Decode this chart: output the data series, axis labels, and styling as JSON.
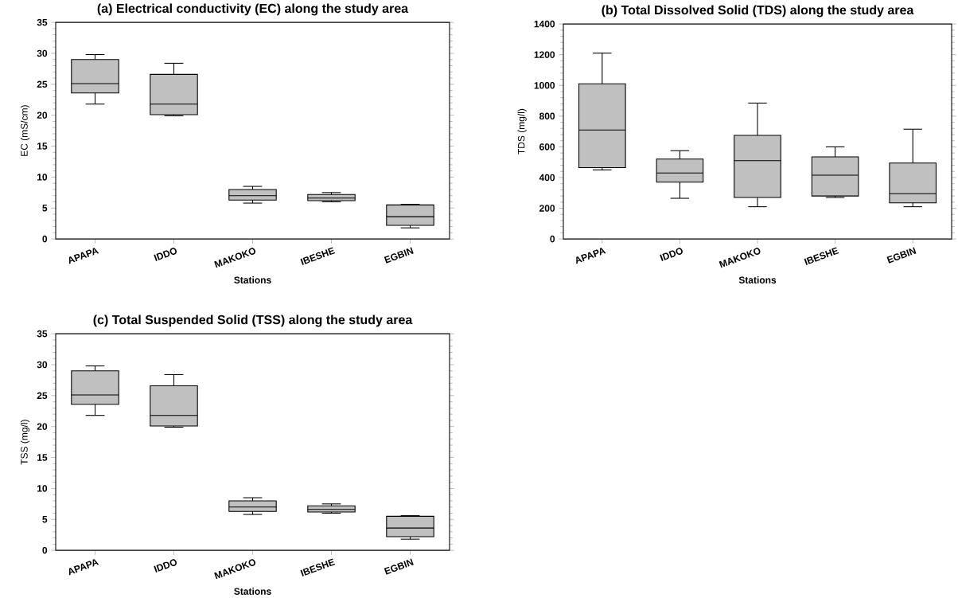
{
  "chart_data": [
    {
      "type": "box",
      "title": "(a) Electrical conductivity (EC) along the study area",
      "xlabel": "Stations",
      "ylabel": "EC (mS/cm)",
      "categories": [
        "APAPA",
        "IDDO",
        "MAKOKO",
        "IBESHE",
        "EGBIN"
      ],
      "ylim": [
        0,
        35
      ],
      "yticks": [
        0,
        5,
        10,
        15,
        20,
        25,
        30,
        35
      ],
      "series": [
        {
          "color": "#c0c0c0",
          "boxes": [
            {
              "low": 21.8,
              "q1": 23.6,
              "median": 25.1,
              "q3": 29.0,
              "high": 29.8
            },
            {
              "low": 19.9,
              "q1": 20.1,
              "median": 21.8,
              "q3": 26.6,
              "high": 28.4
            },
            {
              "low": 5.8,
              "q1": 6.3,
              "median": 7.0,
              "q3": 8.0,
              "high": 8.5
            },
            {
              "low": 6.0,
              "q1": 6.2,
              "median": 6.6,
              "q3": 7.2,
              "high": 7.5
            },
            {
              "low": 1.8,
              "q1": 2.2,
              "median": 3.6,
              "q3": 5.5,
              "high": 5.6
            }
          ]
        }
      ]
    },
    {
      "type": "box",
      "title": "(b) Total Dissolved Solid (TDS) along the study area",
      "xlabel": "Stations",
      "ylabel": "TDS (mg/l)",
      "categories": [
        "APAPA",
        "IDDO",
        "MAKOKO",
        "IBESHE",
        "EGBIN"
      ],
      "ylim": [
        0,
        1400
      ],
      "yticks": [
        0,
        200,
        400,
        600,
        800,
        1000,
        1200,
        1400
      ],
      "series": [
        {
          "color": "#c0c0c0",
          "boxes": [
            {
              "low": 450,
              "q1": 465,
              "median": 710,
              "q3": 1010,
              "high": 1210
            },
            {
              "low": 265,
              "q1": 370,
              "median": 430,
              "q3": 520,
              "high": 575
            },
            {
              "low": 210,
              "q1": 270,
              "median": 510,
              "q3": 675,
              "high": 885
            },
            {
              "low": 270,
              "q1": 280,
              "median": 415,
              "q3": 535,
              "high": 600
            },
            {
              "low": 210,
              "q1": 235,
              "median": 295,
              "q3": 495,
              "high": 715
            }
          ]
        }
      ]
    },
    {
      "type": "box",
      "title": "(c) Total Suspended Solid (TSS) along the study area",
      "xlabel": "Stations",
      "ylabel": "TSS (mg/l)",
      "categories": [
        "APAPA",
        "IDDO",
        "MAKOKO",
        "IBESHE",
        "EGBIN"
      ],
      "ylim": [
        0,
        35
      ],
      "yticks": [
        0,
        5,
        10,
        15,
        20,
        25,
        30,
        35
      ],
      "series": [
        {
          "color": "#c0c0c0",
          "boxes": [
            {
              "low": 21.8,
              "q1": 23.6,
              "median": 25.1,
              "q3": 29.0,
              "high": 29.8
            },
            {
              "low": 19.9,
              "q1": 20.1,
              "median": 21.8,
              "q3": 26.6,
              "high": 28.4
            },
            {
              "low": 5.8,
              "q1": 6.3,
              "median": 7.0,
              "q3": 8.0,
              "high": 8.5
            },
            {
              "low": 6.0,
              "q1": 6.2,
              "median": 6.6,
              "q3": 7.2,
              "high": 7.5
            },
            {
              "low": 1.8,
              "q1": 2.2,
              "median": 3.6,
              "q3": 5.5,
              "high": 5.6
            }
          ]
        }
      ]
    }
  ]
}
